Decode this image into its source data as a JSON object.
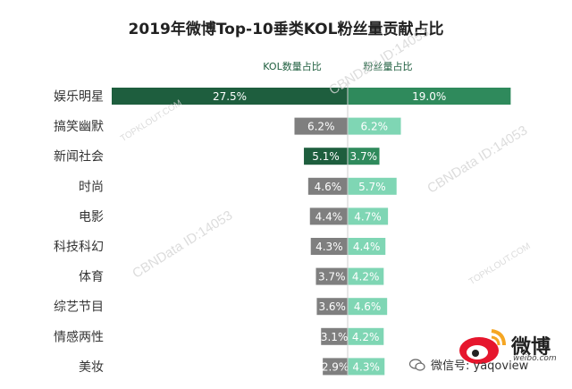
{
  "chart_data": {
    "type": "bar",
    "title": "2019年微博Top-10垂类KOL粉丝量贡献占比",
    "categories": [
      "娱乐明星",
      "搞笑幽默",
      "新闻社会",
      "时尚",
      "电影",
      "科技科幻",
      "体育",
      "综艺节目",
      "情感两性",
      "美妆"
    ],
    "series": [
      {
        "name": "KOL数量占比",
        "values": [
          27.5,
          6.2,
          5.1,
          4.6,
          4.4,
          4.3,
          3.7,
          3.6,
          3.1,
          2.9
        ]
      },
      {
        "name": "粉丝量占比",
        "values": [
          19.0,
          6.2,
          3.7,
          5.7,
          4.7,
          4.4,
          4.2,
          4.6,
          4.2,
          4.3
        ]
      }
    ],
    "value_labels_left": [
      "27.5%",
      "6.2%",
      "5.1%",
      "4.6%",
      "4.4%",
      "4.3%",
      "3.7%",
      "3.6%",
      "3.1%",
      "2.9%"
    ],
    "value_labels_right": [
      "19.0%",
      "6.2%",
      "3.7%",
      "5.7%",
      "4.7%",
      "4.4%",
      "4.2%",
      "4.6%",
      "4.2%",
      "4.3%"
    ],
    "layout": "back-to-back horizontal bars",
    "legend_placement": "top-center",
    "grid": false,
    "colors": {
      "left_highlight": "#1e5e3e",
      "left_default": "#7f7f7f",
      "right_highlight": "#2f8a5c",
      "right_default": "#7fd6b4",
      "legend_text": "#1e5e3e"
    },
    "highlight_indices": [
      0,
      2
    ]
  },
  "watermarks": [
    "TOPKLOUT.COM",
    "CBNData ID:14053"
  ],
  "brand": {
    "name": "微博",
    "sub": "weibo.com"
  },
  "wechat": {
    "label": "微信号: yaqoview"
  }
}
